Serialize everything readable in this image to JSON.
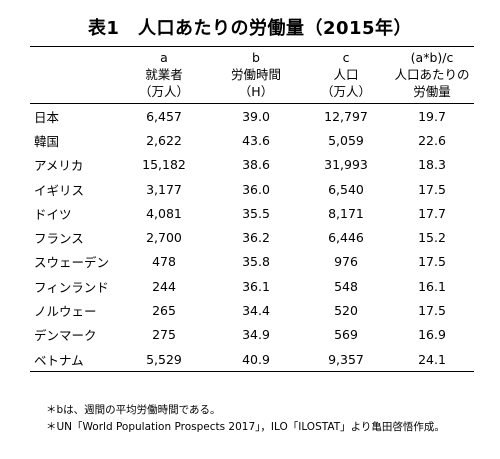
{
  "title": "表1　人口あたりの労働量（2015年）",
  "columns": [
    {
      "lines": [
        "a",
        "就業者",
        "（万人）"
      ]
    },
    {
      "lines": [
        "b",
        "労働時間",
        "（H）"
      ]
    },
    {
      "lines": [
        "c",
        "人口",
        "（万人）"
      ]
    },
    {
      "lines": [
        "(a*b)/c",
        "人口あたりの",
        "労働量"
      ]
    }
  ],
  "rows": [
    {
      "country": "日本",
      "workers": "6,457",
      "hours": "39.0",
      "population": "12,797",
      "labor": "19.7"
    },
    {
      "country": "韓国",
      "workers": "2,622",
      "hours": "43.6",
      "population": "5,059",
      "labor": "22.6"
    },
    {
      "country": "アメリカ",
      "workers": "15,182",
      "hours": "38.6",
      "population": "31,993",
      "labor": "18.3"
    },
    {
      "country": "イギリス",
      "workers": "3,177",
      "hours": "36.0",
      "population": "6,540",
      "labor": "17.5"
    },
    {
      "country": "ドイツ",
      "workers": "4,081",
      "hours": "35.5",
      "population": "8,171",
      "labor": "17.7"
    },
    {
      "country": "フランス",
      "workers": "2,700",
      "hours": "36.2",
      "population": "6,446",
      "labor": "15.2"
    },
    {
      "country": "スウェーデン",
      "workers": "478",
      "hours": "35.8",
      "population": "976",
      "labor": "17.5"
    },
    {
      "country": "フィンランド",
      "workers": "244",
      "hours": "36.1",
      "population": "548",
      "labor": "16.1"
    },
    {
      "country": "ノルウェー",
      "workers": "265",
      "hours": "34.4",
      "population": "520",
      "labor": "17.5"
    },
    {
      "country": "デンマーク",
      "workers": "275",
      "hours": "34.9",
      "population": "569",
      "labor": "16.9"
    },
    {
      "country": "ベトナム",
      "workers": "5,529",
      "hours": "40.9",
      "population": "9,357",
      "labor": "24.1"
    }
  ],
  "notes": [
    "＊bは、週間の平均労働時間である。",
    "＊UN「World Population Prospects 2017」，ILO「ILOSTAT」より亀田啓悟作成。"
  ]
}
